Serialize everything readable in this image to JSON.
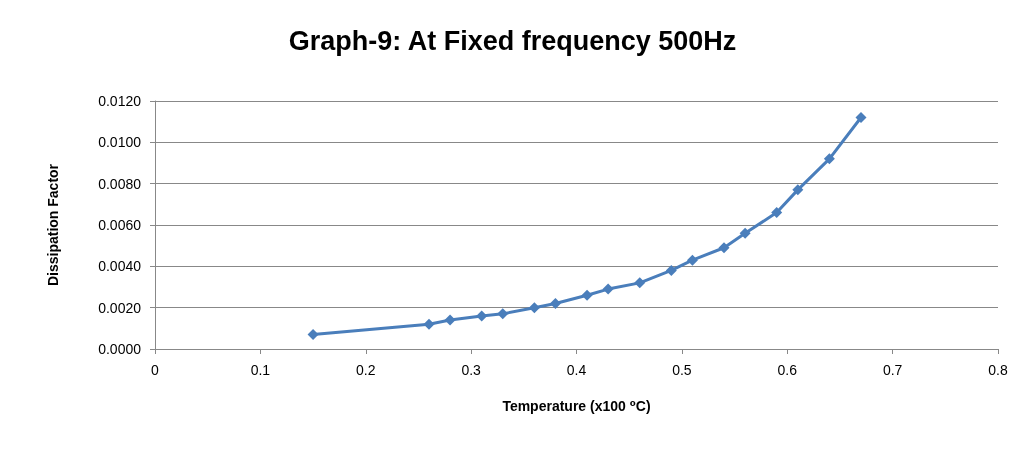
{
  "chart_data": {
    "type": "line",
    "title": "Graph-9: At Fixed frequency 500Hz",
    "xlabel": "Temperature (x100 ⁰C)",
    "ylabel": "Dissipation Factor",
    "x": [
      0.15,
      0.26,
      0.28,
      0.31,
      0.33,
      0.36,
      0.38,
      0.41,
      0.43,
      0.46,
      0.49,
      0.51,
      0.54,
      0.56,
      0.59,
      0.61,
      0.64,
      0.67
    ],
    "series": [
      {
        "color": "#4a7ebb",
        "values": [
          0.0007,
          0.0012,
          0.0014,
          0.0016,
          0.0017,
          0.002,
          0.0022,
          0.0026,
          0.0029,
          0.0032,
          0.0038,
          0.0043,
          0.0049,
          0.0056,
          0.0066,
          0.0077,
          0.0092,
          0.0112
        ]
      }
    ],
    "xlim": [
      0,
      0.8
    ],
    "xticks": [
      0,
      0.1,
      0.2,
      0.3,
      0.4,
      0.5,
      0.6,
      0.7,
      0.8
    ],
    "ylim": [
      0,
      0.012
    ],
    "yticks": [
      {
        "value": 0,
        "label": "0.0000"
      },
      {
        "value": 0.002,
        "label": "0.0020"
      },
      {
        "value": 0.004,
        "label": "0.0040"
      },
      {
        "value": 0.006,
        "label": "0.0060"
      },
      {
        "value": 0.008,
        "label": "0.0080"
      },
      {
        "value": 0.01,
        "label": "0.0100"
      },
      {
        "value": 0.012,
        "label": "0.0120"
      }
    ],
    "grid": "y",
    "marker": "diamond",
    "line_style": "solid"
  }
}
